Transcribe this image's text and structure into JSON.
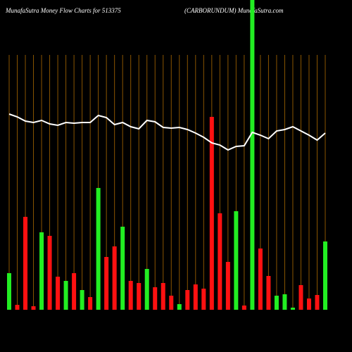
{
  "chart_data": {
    "type": "bar",
    "title": "MunafaSutra  Money Flow  Charts for 513375",
    "subtitle": "(CARBORUNDUM) MunafaSutra.com",
    "ylim": [
      0,
      440
    ],
    "series": [
      {
        "type": "bar",
        "values": [
          52,
          7,
          132,
          5,
          110,
          105,
          47,
          41,
          52,
          28,
          18,
          173,
          75,
          90,
          118,
          41,
          38,
          58,
          32,
          38,
          20,
          8,
          28,
          36,
          30,
          274,
          137,
          68,
          140,
          6,
          440,
          87,
          48,
          20,
          22,
          3,
          35,
          16,
          21,
          97
        ],
        "colors": [
          "#22ee22",
          "#ff1111",
          "#ff1111",
          "#ff1111",
          "#22ee22",
          "#ff1111",
          "#ff1111",
          "#22ee22",
          "#ff1111",
          "#22ee22",
          "#ff1111",
          "#22ee22",
          "#ff1111",
          "#ff1111",
          "#22ee22",
          "#ff1111",
          "#ff1111",
          "#22ee22",
          "#ff1111",
          "#ff1111",
          "#ff1111",
          "#22ee22",
          "#ff1111",
          "#ff1111",
          "#ff1111",
          "#ff1111",
          "#ff1111",
          "#ff1111",
          "#22ee22",
          "#ff1111",
          "#22ee22",
          "#ff1111",
          "#ff1111",
          "#22ee22",
          "#22ee22",
          "#22ee22",
          "#ff1111",
          "#ff1111",
          "#ff1111",
          "#22ee22"
        ]
      },
      {
        "type": "line",
        "color": "#ffffff",
        "values": [
          278,
          274,
          268,
          266,
          269,
          264,
          262,
          266,
          265,
          266,
          266,
          276,
          273,
          263,
          266,
          260,
          257,
          269,
          267,
          259,
          258,
          259,
          256,
          251,
          245,
          237,
          234,
          227,
          232,
          233,
          252,
          248,
          243,
          254,
          256,
          260,
          254,
          248,
          241,
          251
        ]
      }
    ],
    "grid_color": "#8a5500"
  }
}
